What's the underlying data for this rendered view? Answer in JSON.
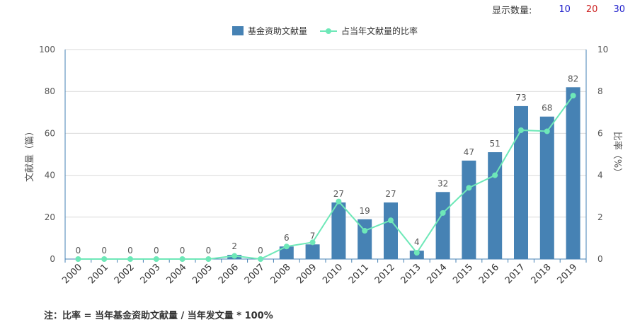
{
  "display_count": {
    "label": "显示数量:",
    "options": [
      {
        "text": "10",
        "color": "#2222cc"
      },
      {
        "text": "20",
        "color": "#cc2222"
      },
      {
        "text": "30",
        "color": "#2222cc"
      }
    ]
  },
  "note": "注：比率 = 当年基金资助文献量 / 当年发文量 * 100%",
  "colors": {
    "bar": "#4682b4",
    "line": "#6ee8b8",
    "axis": "#4682b4",
    "grid": "#d9d9d9"
  },
  "chart_data": {
    "type": "bar",
    "categories": [
      "2000",
      "2001",
      "2002",
      "2003",
      "2004",
      "2005",
      "2006",
      "2007",
      "2008",
      "2009",
      "2010",
      "2011",
      "2012",
      "2013",
      "2014",
      "2015",
      "2016",
      "2017",
      "2018",
      "2019"
    ],
    "series": [
      {
        "name": "基金资助文献量",
        "type": "bar",
        "axis": "left",
        "values": [
          0,
          0,
          0,
          0,
          0,
          0,
          2,
          0,
          6,
          7,
          27,
          19,
          27,
          4,
          32,
          47,
          51,
          73,
          68,
          82
        ]
      },
      {
        "name": "占当年文献量的比率",
        "type": "line",
        "axis": "right",
        "values": [
          0,
          0,
          0,
          0,
          0,
          0,
          0.15,
          0,
          0.6,
          0.8,
          2.75,
          1.35,
          1.85,
          0.3,
          2.2,
          3.4,
          4.0,
          6.15,
          6.1,
          7.8
        ]
      }
    ],
    "ylabel": "文献量（篇）",
    "y2label": "比率（%）",
    "ylim": [
      0,
      100
    ],
    "y2lim": [
      0,
      10
    ],
    "yticks": [
      0,
      20,
      40,
      60,
      80,
      100
    ],
    "y2ticks": [
      0,
      2,
      4,
      6,
      8,
      10
    ],
    "grid": true,
    "legend": "top-center"
  }
}
